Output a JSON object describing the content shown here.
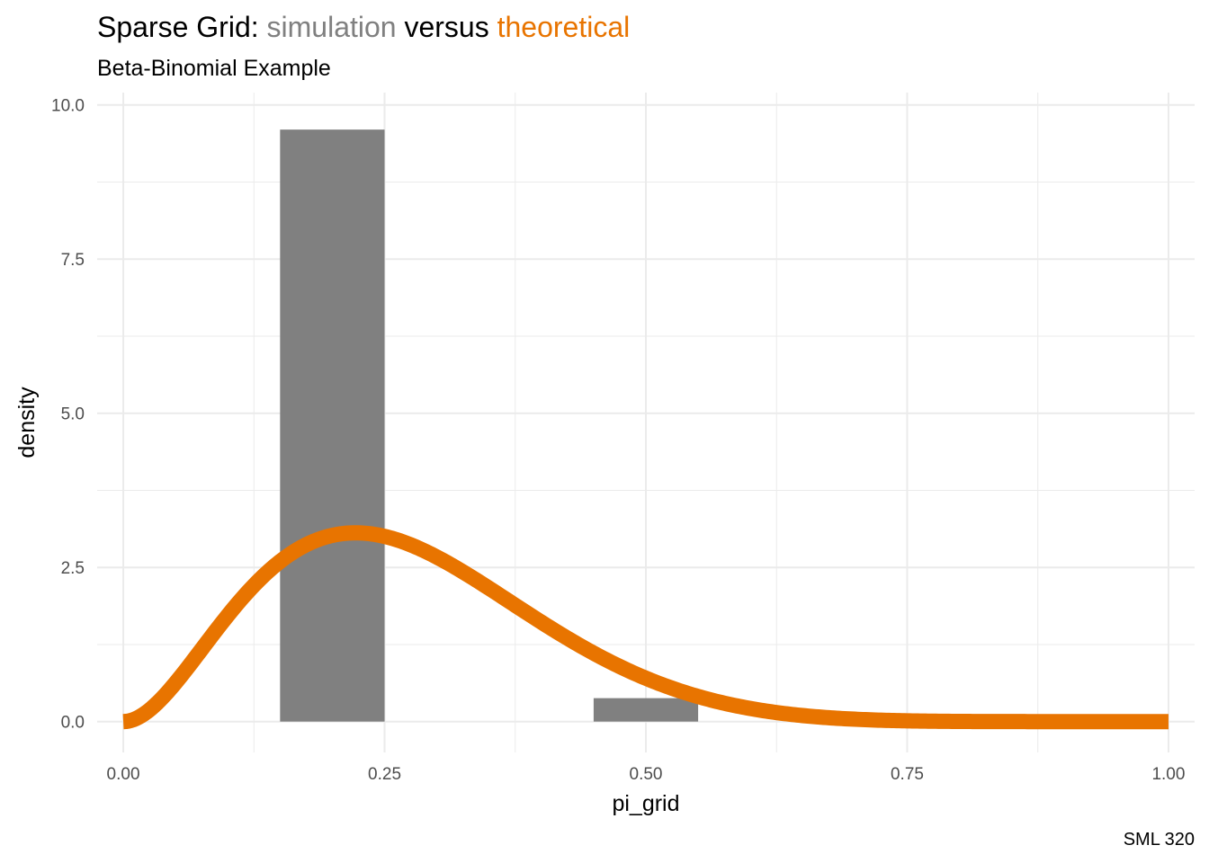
{
  "chart_data": {
    "type": "bar",
    "title_parts": [
      {
        "text": "Sparse Grid: ",
        "color": "#000000"
      },
      {
        "text": "simulation",
        "color": "#808080"
      },
      {
        "text": " versus ",
        "color": "#000000"
      },
      {
        "text": "theoretical",
        "color": "#E87400"
      }
    ],
    "subtitle": "Beta-Binomial Example",
    "xlabel": "pi_grid",
    "ylabel": "density",
    "caption": "SML 320",
    "xlim": [
      -0.025,
      1.025
    ],
    "ylim": [
      -0.5,
      10.2
    ],
    "x_ticks": [
      0.0,
      0.25,
      0.5,
      0.75,
      1.0
    ],
    "x_tick_labels": [
      "0.00",
      "0.25",
      "0.50",
      "0.75",
      "1.00"
    ],
    "y_ticks": [
      0.0,
      2.5,
      5.0,
      7.5,
      10.0
    ],
    "y_tick_labels": [
      "0.0",
      "2.5",
      "5.0",
      "7.5",
      "10.0"
    ],
    "grid": true,
    "histogram": {
      "name": "simulation",
      "color": "#808080",
      "bins": [
        {
          "x0": 0.15,
          "x1": 0.25,
          "density": 9.6
        },
        {
          "x0": 0.45,
          "x1": 0.55,
          "density": 0.38
        }
      ]
    },
    "density_curve": {
      "name": "theoretical",
      "color": "#E87400",
      "distribution": "beta",
      "shape1": 3,
      "shape2": 8,
      "x_range": [
        0,
        1
      ]
    }
  }
}
